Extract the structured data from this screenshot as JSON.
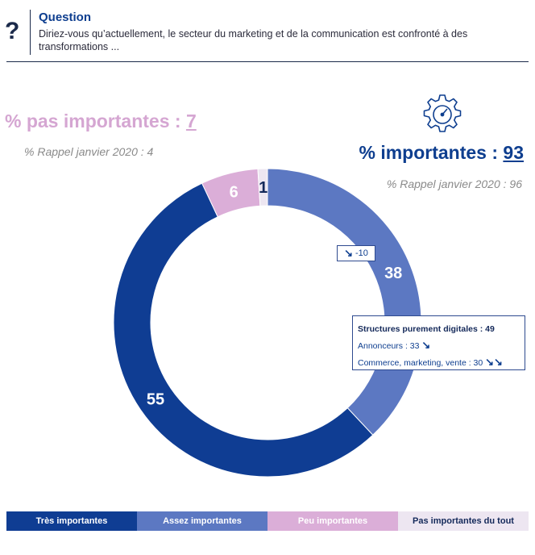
{
  "header": {
    "icon": "?",
    "title": "Question",
    "text": "Diriez-vous qu’actuellement, le secteur du marketing et de la communication est confronté à des transformations ..."
  },
  "summary": {
    "pas_importantes": {
      "label": "% pas importantes : ",
      "value": "7",
      "rappel": "% Rappel janvier 2020 : 4"
    },
    "importantes": {
      "label": "% importantes : ",
      "value": "93",
      "rappel": "% Rappel janvier 2020 : 96"
    }
  },
  "chart_data": {
    "type": "pie",
    "style": "donut",
    "categories": [
      "Assez importantes",
      "Très importantes",
      "Peu importantes",
      "Pas importantes du tout"
    ],
    "values": [
      38,
      55,
      6,
      1
    ],
    "labels": [
      "38",
      "55",
      "6",
      "1"
    ],
    "colors": [
      "#5c78c2",
      "#0f3d93",
      "#dbaed8",
      "#ede6f1"
    ],
    "label_colors": [
      "#ffffff",
      "#ffffff",
      "#ffffff",
      "#14295a"
    ],
    "start": "top, clockwise"
  },
  "annotations": {
    "delta": {
      "arrow": "↘",
      "value": "-10"
    },
    "details": {
      "title": "Structures purement digitales : 49",
      "row1": "Annonceurs : 33",
      "row1_arrow": "↘",
      "row2": "Commerce, marketing, vente : 30",
      "row2_arrow": "↘↘"
    }
  },
  "legend": [
    {
      "label": "Très importantes",
      "bg": "#0f3d93",
      "fg": "#ffffff"
    },
    {
      "label": "Assez importantes",
      "bg": "#5c78c2",
      "fg": "#ffffff"
    },
    {
      "label": "Peu importantes",
      "bg": "#dbaed8",
      "fg": "#ffffff"
    },
    {
      "label": "Pas importantes du tout",
      "bg": "#ede6f1",
      "fg": "#14295a"
    }
  ]
}
